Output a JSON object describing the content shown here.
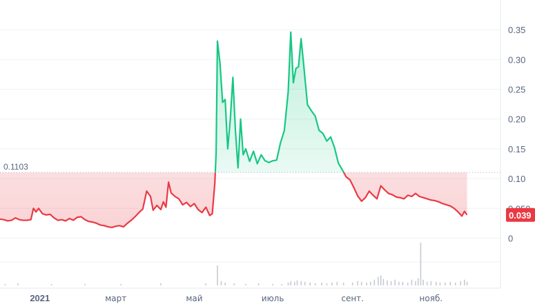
{
  "chart_data": {
    "type": "area",
    "reference_line": {
      "value": 0.1103,
      "label": "0.1103"
    },
    "last_value": {
      "value": 0.039,
      "label": "0.039"
    },
    "ylim": [
      -0.04,
      0.4
    ],
    "y_ticks": [
      {
        "value": 0.35,
        "label": "0.35"
      },
      {
        "value": 0.3,
        "label": "0.30"
      },
      {
        "value": 0.25,
        "label": "0.25"
      },
      {
        "value": 0.2,
        "label": "0.20"
      },
      {
        "value": 0.15,
        "label": "0.15"
      },
      {
        "value": 0.1,
        "label": "0.10"
      },
      {
        "value": 0.05,
        "label": "0.050"
      },
      {
        "value": 0.0,
        "label": "0"
      }
    ],
    "x_range": [
      "2020-12-01",
      "2021-12-25"
    ],
    "x_ticks": [
      {
        "date": "2021-01-01",
        "label": "2021",
        "bold": true
      },
      {
        "date": "2021-03-01",
        "label": "март",
        "bold": false
      },
      {
        "date": "2021-05-01",
        "label": "май",
        "bold": false
      },
      {
        "date": "2021-07-01",
        "label": "июль",
        "bold": false
      },
      {
        "date": "2021-09-01",
        "label": "сент.",
        "bold": false
      },
      {
        "date": "2021-11-01",
        "label": "нояб.",
        "bold": false
      }
    ],
    "colors": {
      "above": "#16c784",
      "below": "#ea3943",
      "grid": "#eff2f5",
      "axis_text": "#58667e"
    },
    "series": [
      {
        "values": [
          [
            "2020-12-01",
            0.032
          ],
          [
            "2020-12-04",
            0.031
          ],
          [
            "2020-12-07",
            0.029
          ],
          [
            "2020-12-10",
            0.03
          ],
          [
            "2020-12-13",
            0.034
          ],
          [
            "2020-12-16",
            0.031
          ],
          [
            "2020-12-19",
            0.03
          ],
          [
            "2020-12-22",
            0.03
          ],
          [
            "2020-12-25",
            0.031
          ],
          [
            "2020-12-27",
            0.05
          ],
          [
            "2020-12-29",
            0.044
          ],
          [
            "2020-12-31",
            0.05
          ],
          [
            "2021-01-03",
            0.041
          ],
          [
            "2021-01-06",
            0.039
          ],
          [
            "2021-01-09",
            0.04
          ],
          [
            "2021-01-12",
            0.034
          ],
          [
            "2021-01-15",
            0.03
          ],
          [
            "2021-01-18",
            0.031
          ],
          [
            "2021-01-21",
            0.029
          ],
          [
            "2021-01-24",
            0.033
          ],
          [
            "2021-01-27",
            0.03
          ],
          [
            "2021-01-30",
            0.035
          ],
          [
            "2021-02-02",
            0.036
          ],
          [
            "2021-02-05",
            0.031
          ],
          [
            "2021-02-08",
            0.028
          ],
          [
            "2021-02-11",
            0.027
          ],
          [
            "2021-02-14",
            0.025
          ],
          [
            "2021-02-17",
            0.022
          ],
          [
            "2021-02-20",
            0.021
          ],
          [
            "2021-02-23",
            0.019
          ],
          [
            "2021-02-26",
            0.018
          ],
          [
            "2021-03-01",
            0.02
          ],
          [
            "2021-03-04",
            0.021
          ],
          [
            "2021-03-07",
            0.019
          ],
          [
            "2021-03-10",
            0.025
          ],
          [
            "2021-03-13",
            0.03
          ],
          [
            "2021-03-16",
            0.036
          ],
          [
            "2021-03-19",
            0.043
          ],
          [
            "2021-03-22",
            0.049
          ],
          [
            "2021-03-25",
            0.079
          ],
          [
            "2021-03-28",
            0.07
          ],
          [
            "2021-03-30",
            0.047
          ],
          [
            "2021-04-02",
            0.055
          ],
          [
            "2021-04-05",
            0.048
          ],
          [
            "2021-04-07",
            0.061
          ],
          [
            "2021-04-09",
            0.052
          ],
          [
            "2021-04-11",
            0.094
          ],
          [
            "2021-04-13",
            0.076
          ],
          [
            "2021-04-16",
            0.07
          ],
          [
            "2021-04-19",
            0.066
          ],
          [
            "2021-04-22",
            0.056
          ],
          [
            "2021-04-25",
            0.06
          ],
          [
            "2021-04-28",
            0.053
          ],
          [
            "2021-05-01",
            0.058
          ],
          [
            "2021-05-04",
            0.048
          ],
          [
            "2021-05-07",
            0.043
          ],
          [
            "2021-05-10",
            0.052
          ],
          [
            "2021-05-13",
            0.038
          ],
          [
            "2021-05-15",
            0.041
          ],
          [
            "2021-05-17",
            0.093
          ],
          [
            "2021-05-18",
            0.145
          ],
          [
            "2021-05-19",
            0.331
          ],
          [
            "2021-05-21",
            0.294
          ],
          [
            "2021-05-23",
            0.228
          ],
          [
            "2021-05-25",
            0.233
          ],
          [
            "2021-05-27",
            0.15
          ],
          [
            "2021-05-29",
            0.2
          ],
          [
            "2021-05-31",
            0.27
          ],
          [
            "2021-06-02",
            0.18
          ],
          [
            "2021-06-04",
            0.118
          ],
          [
            "2021-06-06",
            0.2
          ],
          [
            "2021-06-08",
            0.14
          ],
          [
            "2021-06-10",
            0.15
          ],
          [
            "2021-06-13",
            0.129
          ],
          [
            "2021-06-16",
            0.146
          ],
          [
            "2021-06-19",
            0.125
          ],
          [
            "2021-06-22",
            0.14
          ],
          [
            "2021-06-25",
            0.13
          ],
          [
            "2021-06-28",
            0.127
          ],
          [
            "2021-07-01",
            0.13
          ],
          [
            "2021-07-04",
            0.131
          ],
          [
            "2021-07-07",
            0.16
          ],
          [
            "2021-07-10",
            0.181
          ],
          [
            "2021-07-13",
            0.246
          ],
          [
            "2021-07-15",
            0.346
          ],
          [
            "2021-07-17",
            0.261
          ],
          [
            "2021-07-19",
            0.285
          ],
          [
            "2021-07-21",
            0.288
          ],
          [
            "2021-07-23",
            0.335
          ],
          [
            "2021-07-25",
            0.292
          ],
          [
            "2021-07-28",
            0.224
          ],
          [
            "2021-07-31",
            0.214
          ],
          [
            "2021-08-03",
            0.205
          ],
          [
            "2021-08-06",
            0.181
          ],
          [
            "2021-08-09",
            0.176
          ],
          [
            "2021-08-12",
            0.163
          ],
          [
            "2021-08-15",
            0.17
          ],
          [
            "2021-08-18",
            0.152
          ],
          [
            "2021-08-21",
            0.126
          ],
          [
            "2021-08-24",
            0.115
          ],
          [
            "2021-08-27",
            0.103
          ],
          [
            "2021-08-30",
            0.098
          ],
          [
            "2021-09-02",
            0.085
          ],
          [
            "2021-09-05",
            0.071
          ],
          [
            "2021-09-08",
            0.062
          ],
          [
            "2021-09-11",
            0.068
          ],
          [
            "2021-09-14",
            0.079
          ],
          [
            "2021-09-17",
            0.072
          ],
          [
            "2021-09-20",
            0.066
          ],
          [
            "2021-09-23",
            0.088
          ],
          [
            "2021-09-26",
            0.081
          ],
          [
            "2021-09-29",
            0.075
          ],
          [
            "2021-10-02",
            0.073
          ],
          [
            "2021-10-05",
            0.069
          ],
          [
            "2021-10-08",
            0.068
          ],
          [
            "2021-10-11",
            0.066
          ],
          [
            "2021-10-14",
            0.072
          ],
          [
            "2021-10-17",
            0.07
          ],
          [
            "2021-10-20",
            0.075
          ],
          [
            "2021-10-23",
            0.07
          ],
          [
            "2021-10-26",
            0.068
          ],
          [
            "2021-10-29",
            0.066
          ],
          [
            "2021-11-01",
            0.064
          ],
          [
            "2021-11-04",
            0.063
          ],
          [
            "2021-11-07",
            0.061
          ],
          [
            "2021-11-10",
            0.058
          ],
          [
            "2021-11-13",
            0.056
          ],
          [
            "2021-11-16",
            0.054
          ],
          [
            "2021-11-19",
            0.05
          ],
          [
            "2021-11-22",
            0.044
          ],
          [
            "2021-11-25",
            0.037
          ],
          [
            "2021-11-27",
            0.045
          ],
          [
            "2021-11-29",
            0.039
          ]
        ]
      }
    ],
    "volume": [
      [
        "2020-12-05",
        2
      ],
      [
        "2020-12-15",
        3
      ],
      [
        "2021-01-10",
        2
      ],
      [
        "2021-02-05",
        2
      ],
      [
        "2021-03-05",
        2
      ],
      [
        "2021-04-05",
        3
      ],
      [
        "2021-05-10",
        3
      ],
      [
        "2021-05-19",
        28
      ],
      [
        "2021-05-22",
        6
      ],
      [
        "2021-05-25",
        4
      ],
      [
        "2021-06-01",
        3
      ],
      [
        "2021-06-10",
        2
      ],
      [
        "2021-06-20",
        3
      ],
      [
        "2021-07-01",
        2
      ],
      [
        "2021-07-08",
        2
      ],
      [
        "2021-07-13",
        4
      ],
      [
        "2021-07-15",
        6
      ],
      [
        "2021-07-18",
        5
      ],
      [
        "2021-07-20",
        7
      ],
      [
        "2021-07-23",
        6
      ],
      [
        "2021-07-26",
        5
      ],
      [
        "2021-07-30",
        4
      ],
      [
        "2021-08-03",
        3
      ],
      [
        "2021-08-08",
        4
      ],
      [
        "2021-08-12",
        3
      ],
      [
        "2021-08-16",
        4
      ],
      [
        "2021-08-20",
        5
      ],
      [
        "2021-08-25",
        4
      ],
      [
        "2021-09-01",
        4
      ],
      [
        "2021-09-05",
        6
      ],
      [
        "2021-09-08",
        5
      ],
      [
        "2021-09-12",
        4
      ],
      [
        "2021-09-15",
        5
      ],
      [
        "2021-09-18",
        8
      ],
      [
        "2021-09-21",
        12
      ],
      [
        "2021-09-23",
        14
      ],
      [
        "2021-09-25",
        9
      ],
      [
        "2021-09-28",
        7
      ],
      [
        "2021-10-01",
        6
      ],
      [
        "2021-10-04",
        8
      ],
      [
        "2021-10-07",
        5
      ],
      [
        "2021-10-10",
        5
      ],
      [
        "2021-10-14",
        4
      ],
      [
        "2021-10-17",
        8
      ],
      [
        "2021-10-20",
        6
      ],
      [
        "2021-10-22",
        10
      ],
      [
        "2021-10-24",
        60
      ],
      [
        "2021-10-26",
        8
      ],
      [
        "2021-10-29",
        5
      ],
      [
        "2021-11-01",
        6
      ],
      [
        "2021-11-05",
        5
      ],
      [
        "2021-11-08",
        4
      ],
      [
        "2021-11-12",
        4
      ],
      [
        "2021-11-16",
        5
      ],
      [
        "2021-11-20",
        4
      ],
      [
        "2021-11-24",
        6
      ],
      [
        "2021-11-27",
        8
      ],
      [
        "2021-11-29",
        5
      ]
    ]
  }
}
